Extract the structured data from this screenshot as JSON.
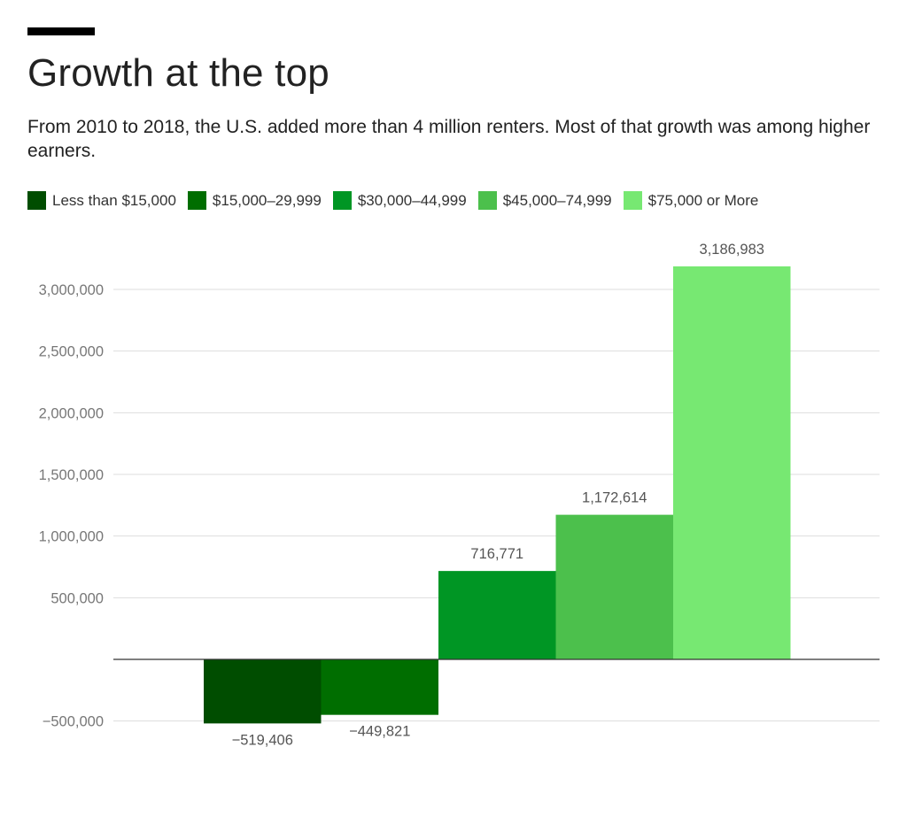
{
  "header": {
    "title": "Growth at the top",
    "subtitle": "From 2010 to 2018, the U.S. added more than 4 million renters. Most of that growth was among higher earners."
  },
  "chart_data": {
    "type": "bar",
    "title": "Growth at the top",
    "subtitle": "From 2010 to 2018, the U.S. added more than 4 million renters. Most of that growth was among higher earners.",
    "xlabel": "",
    "ylabel": "",
    "ylim": [
      -500000,
      3200000
    ],
    "yticks": [
      -500000,
      500000,
      1000000,
      1500000,
      2000000,
      2500000,
      3000000
    ],
    "ytick_labels": [
      "−500,000",
      "500,000",
      "1,000,000",
      "1,500,000",
      "2,000,000",
      "2,500,000",
      "3,000,000"
    ],
    "grid": true,
    "legend_position": "top-left",
    "series": [
      {
        "name": "Less than $15,000",
        "value": -519406,
        "label": "−519,406",
        "color": "#004d00"
      },
      {
        "name": "$15,000–29,999",
        "value": -449821,
        "label": "−449,821",
        "color": "#006e00"
      },
      {
        "name": "$30,000–44,999",
        "value": 716771,
        "label": "716,771",
        "color": "#009624"
      },
      {
        "name": "$45,000–74,999",
        "value": 1172614,
        "label": "1,172,614",
        "color": "#4cc04c"
      },
      {
        "name": "$75,000 or More",
        "value": 3186983,
        "label": "3,186,983",
        "color": "#77e872"
      }
    ]
  }
}
